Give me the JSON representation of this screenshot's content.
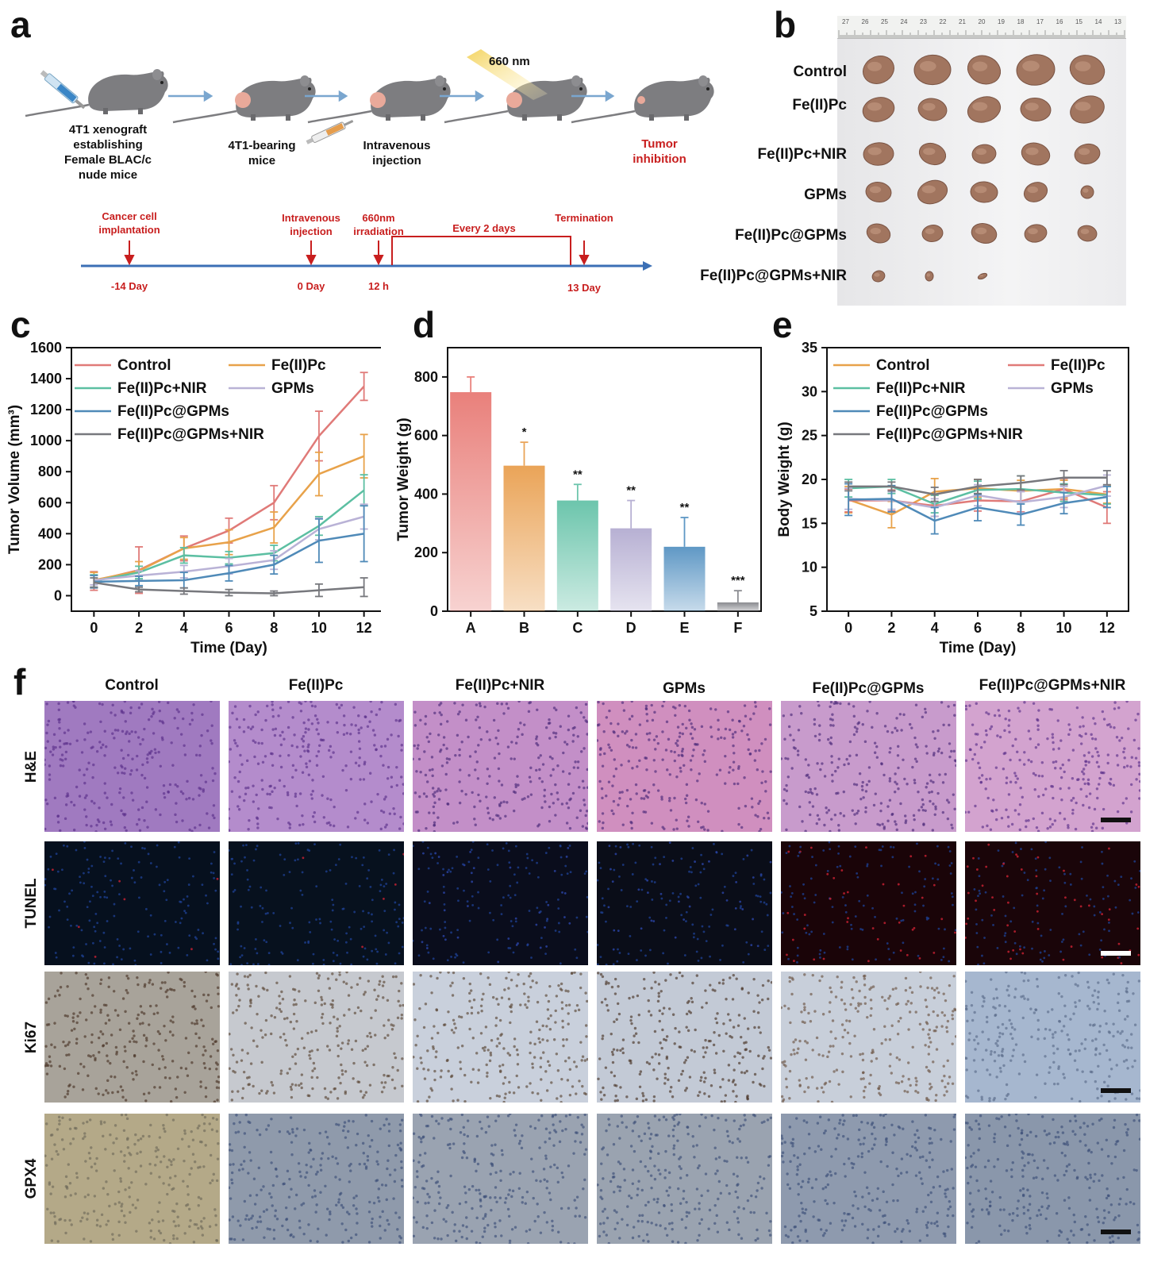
{
  "panel_letters": {
    "a": "a",
    "b": "b",
    "c": "c",
    "d": "d",
    "e": "e",
    "f": "f"
  },
  "panel_a": {
    "wavelength": "660 nm",
    "steps": [
      "4T1 xenograft establishing Female BLAC/c nude mice",
      "4T1-bearing mice",
      "Intravenous injection",
      "",
      "Tumor inhibition"
    ],
    "step_lines": [
      [
        "4T1 xenograft",
        "establishing",
        "Female BLAC/c",
        "nude mice"
      ],
      [
        "4T1-bearing",
        "mice"
      ],
      [
        "Intravenous",
        "injection"
      ],
      [],
      [
        "Tumor",
        "inhibition"
      ]
    ],
    "timeline_events": [
      {
        "lines": [
          "Cancer cell",
          "implantation"
        ],
        "day": "-14 Day"
      },
      {
        "lines": [
          "Intravenous",
          "injection"
        ],
        "day": "0 Day"
      },
      {
        "lines": [
          "660nm",
          "irradiation"
        ],
        "day": "12 h"
      },
      {
        "lines": [
          "Termination"
        ],
        "day": "13 Day"
      }
    ],
    "interval_label": "Every 2 days"
  },
  "panel_b": {
    "groups": [
      "Control",
      "Fe(II)Pc",
      "Fe(II)Pc+NIR",
      "GPMs",
      "Fe(II)Pc@GPMs",
      "Fe(II)Pc@GPMs+NIR"
    ],
    "tumor_counts": [
      5,
      5,
      5,
      5,
      5,
      3
    ],
    "ruler_ticks": [
      "27",
      "26",
      "25",
      "24",
      "23",
      "22",
      "21",
      "20",
      "19",
      "18",
      "17",
      "16",
      "15",
      "14",
      "13"
    ]
  },
  "chart_data": [
    {
      "id": "c",
      "type": "line",
      "xlabel": "Time (Day)",
      "ylabel": "Tumor Volume (mm³)",
      "x": [
        0,
        2,
        4,
        6,
        8,
        10,
        12
      ],
      "xlim": [
        -1,
        13
      ],
      "ylim": [
        -100,
        1600
      ],
      "yticks": [
        0,
        200,
        400,
        600,
        800,
        1000,
        1200,
        1400,
        1600
      ],
      "xticks": [
        0,
        2,
        4,
        6,
        8,
        10,
        12
      ],
      "legend": "top-left, two columns",
      "series": [
        {
          "name": "Control",
          "color": "#e07a78",
          "values": [
            95,
            165,
            305,
            420,
            600,
            1030,
            1350
          ],
          "err": [
            60,
            150,
            80,
            80,
            110,
            160,
            90
          ]
        },
        {
          "name": "Fe(II)Pc",
          "color": "#e8a24a",
          "values": [
            100,
            160,
            305,
            345,
            440,
            785,
            900
          ],
          "err": [
            50,
            60,
            70,
            80,
            100,
            140,
            140
          ]
        },
        {
          "name": "Fe(II)Pc+NIR",
          "color": "#5cbfa2",
          "values": [
            95,
            150,
            260,
            245,
            275,
            450,
            680
          ],
          "err": [
            40,
            40,
            50,
            40,
            50,
            60,
            100
          ]
        },
        {
          "name": "GPMs",
          "color": "#b9b2d6",
          "values": [
            100,
            130,
            155,
            190,
            230,
            430,
            510
          ],
          "err": [
            30,
            30,
            40,
            50,
            60,
            70,
            80
          ]
        },
        {
          "name": "Fe(II)Pc@GPMs",
          "color": "#4f8ab8",
          "values": [
            90,
            95,
            100,
            145,
            200,
            355,
            400
          ],
          "err": [
            40,
            30,
            50,
            50,
            60,
            140,
            180
          ]
        },
        {
          "name": "Fe(II)Pc@GPMs+NIR",
          "color": "#77787d",
          "values": [
            85,
            40,
            30,
            20,
            15,
            35,
            55
          ],
          "err": [
            30,
            15,
            20,
            20,
            15,
            40,
            60
          ]
        }
      ]
    },
    {
      "id": "d",
      "type": "bar",
      "ylabel": "Tumor Weight (g)",
      "categories": [
        "A",
        "B",
        "C",
        "D",
        "E",
        "F"
      ],
      "values": [
        748,
        497,
        378,
        283,
        220,
        30
      ],
      "err": [
        52,
        80,
        55,
        95,
        100,
        40
      ],
      "sig": [
        "",
        "*",
        "**",
        "**",
        "**",
        "***"
      ],
      "colors": [
        "#e9807b",
        "#eaa458",
        "#6cc5ac",
        "#b7b0d3",
        "#5f98c5",
        "#8a8b90"
      ],
      "ylim": [
        0,
        900
      ],
      "yticks": [
        0,
        200,
        400,
        600,
        800
      ]
    },
    {
      "id": "e",
      "type": "line",
      "xlabel": "Time (Day)",
      "ylabel": "Body Weight (g)",
      "x": [
        0,
        2,
        4,
        6,
        8,
        10,
        12
      ],
      "xlim": [
        -1,
        13
      ],
      "ylim": [
        5,
        35
      ],
      "yticks": [
        5,
        10,
        15,
        20,
        25,
        30,
        35
      ],
      "xticks": [
        0,
        2,
        4,
        6,
        8,
        10,
        12
      ],
      "legend": "top, two columns",
      "series": [
        {
          "name": "Control",
          "color": "#e8a24a",
          "values": [
            17.7,
            16.0,
            18.6,
            19.0,
            18.7,
            18.9,
            18.3
          ],
          "err": [
            1.5,
            1.5,
            1.5,
            1.0,
            1.2,
            1.0,
            1.0
          ]
        },
        {
          "name": "Fe(II)Pc",
          "color": "#e07a78",
          "values": [
            17.6,
            17.6,
            17.0,
            17.6,
            17.5,
            18.9,
            16.8
          ],
          "err": [
            1.3,
            1.2,
            1.2,
            1.2,
            1.2,
            1.2,
            1.8
          ]
        },
        {
          "name": "Fe(II)Pc+NIR",
          "color": "#5cbfa2",
          "values": [
            19.0,
            19.2,
            17.2,
            18.8,
            18.9,
            18.5,
            18.2
          ],
          "err": [
            1.0,
            0.8,
            1.0,
            1.0,
            1.5,
            1.0,
            1.0
          ]
        },
        {
          "name": "GPMs",
          "color": "#b9b2d6",
          "values": [
            17.8,
            17.6,
            16.8,
            18.2,
            17.4,
            18.0,
            19.3
          ],
          "err": [
            1.2,
            1.0,
            1.0,
            1.2,
            1.2,
            1.2,
            1.2
          ]
        },
        {
          "name": "Fe(II)Pc@GPMs",
          "color": "#4f8ab8",
          "values": [
            17.7,
            17.8,
            15.3,
            16.8,
            16.0,
            17.3,
            18.0
          ],
          "err": [
            1.8,
            1.5,
            1.5,
            1.5,
            1.2,
            1.2,
            1.2
          ]
        },
        {
          "name": "Fe(II)Pc@GPMs+NIR",
          "color": "#77787d",
          "values": [
            19.2,
            19.2,
            18.3,
            19.2,
            19.6,
            20.2,
            20.2
          ],
          "err": [
            0.5,
            0.5,
            0.8,
            0.8,
            0.8,
            0.8,
            0.8
          ]
        }
      ]
    }
  ],
  "panel_f": {
    "columns": [
      "Control",
      "Fe(II)Pc",
      "Fe(II)Pc+NIR",
      "GPMs",
      "Fe(II)Pc@GPMs",
      "Fe(II)Pc@GPMs+NIR"
    ],
    "rows": [
      "H&E",
      "TUNEL",
      "Ki67",
      "GPX4"
    ]
  }
}
